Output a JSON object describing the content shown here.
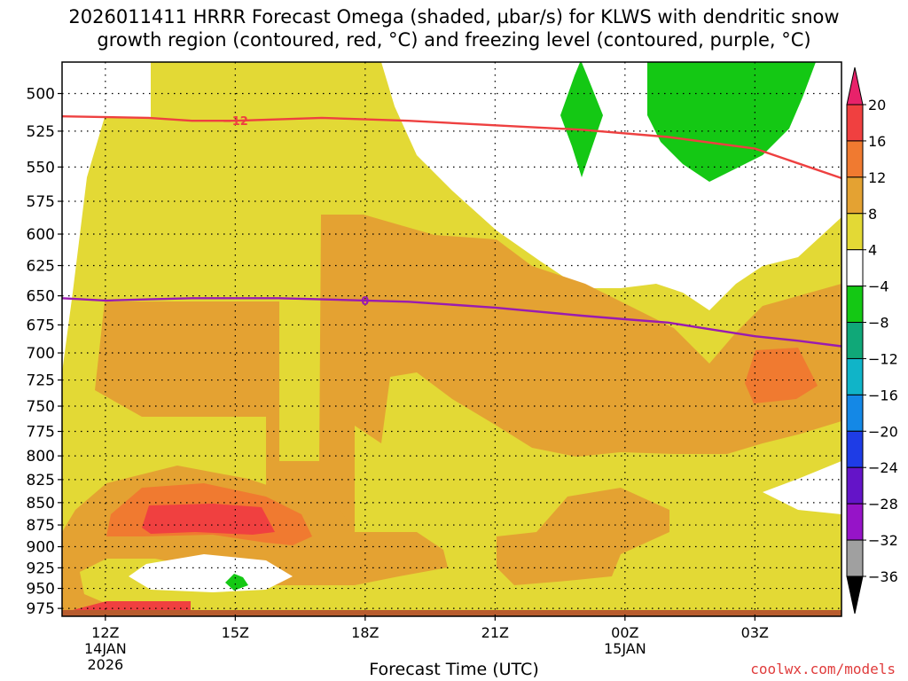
{
  "title": {
    "line1": "2026011411 HRRR Forecast Omega (shaded, µbar/s) for KLWS with dendritic snow",
    "line2": "growth region (contoured, red, °C) and freezing level (contoured, purple, °C)"
  },
  "watermark": "coolwx.com/models",
  "chart_data": {
    "type": "heatmap",
    "title": "2026011411 HRRR Forecast Omega (shaded, µbar/s) for KLWS with dendritic snow growth region (contoured, red, °C) and freezing level (contoured, purple, °C)",
    "xlabel": "Forecast Time (UTC)",
    "ylabel": "",
    "x_ticks": [
      {
        "hour": 1,
        "label": "12Z",
        "sub1": "14JAN",
        "sub2": "2026"
      },
      {
        "hour": 4,
        "label": "15Z",
        "sub1": "",
        "sub2": ""
      },
      {
        "hour": 7,
        "label": "18Z",
        "sub1": "",
        "sub2": ""
      },
      {
        "hour": 10,
        "label": "21Z",
        "sub1": "",
        "sub2": ""
      },
      {
        "hour": 13,
        "label": "00Z",
        "sub1": "15JAN",
        "sub2": ""
      },
      {
        "hour": 16,
        "label": "03Z",
        "sub1": "",
        "sub2": ""
      }
    ],
    "xlim_hours": [
      0,
      18
    ],
    "y_ticks": [
      500,
      525,
      550,
      575,
      600,
      625,
      650,
      675,
      700,
      725,
      750,
      775,
      800,
      825,
      850,
      875,
      900,
      925,
      950,
      975
    ],
    "ylim": [
      480,
      985
    ],
    "y_axis": "log-pressure (hPa), inverted",
    "grid": true,
    "colorbar": {
      "labels": [
        "20",
        "16",
        "12",
        "8",
        "4",
        "−4",
        "−8",
        "−12",
        "−16",
        "−20",
        "−24",
        "−28",
        "−32",
        "−36"
      ],
      "colors": [
        "#e8226a",
        "#f04040",
        "#f07a30",
        "#e4a232",
        "#e3d935",
        "#ffffff",
        "#14c814",
        "#10a878",
        "#10b4c8",
        "#1488e6",
        "#1e3ce6",
        "#6414c8",
        "#9614c8",
        "#a0a0a0",
        "#000000"
      ]
    },
    "fill_levels": {
      "omega_4_8": "#e3d935",
      "omega_8_12": "#e4a232",
      "omega_12_16": "#f07a30",
      "omega_16_20": "#f04040",
      "omega_-8_-4": "#14c814"
    },
    "contours": [
      {
        "name": "dendritic snow growth region",
        "color": "#ee4040",
        "label": "−12",
        "label_hour": 4,
        "points": [
          [
            0,
            515
          ],
          [
            2,
            516
          ],
          [
            3,
            518
          ],
          [
            4,
            518
          ],
          [
            5,
            517
          ],
          [
            6,
            516
          ],
          [
            7,
            517
          ],
          [
            8,
            518
          ],
          [
            10,
            521
          ],
          [
            12,
            524
          ],
          [
            14,
            529
          ],
          [
            16,
            537
          ],
          [
            18,
            558
          ]
        ]
      },
      {
        "name": "freezing level",
        "color": "#9a1bb0",
        "label": "0",
        "label_hour": 7,
        "points": [
          [
            0,
            652
          ],
          [
            1,
            654
          ],
          [
            2,
            653
          ],
          [
            3,
            652
          ],
          [
            4,
            652
          ],
          [
            5,
            652
          ],
          [
            6,
            653
          ],
          [
            7,
            654
          ],
          [
            8,
            655
          ],
          [
            10,
            660
          ],
          [
            12,
            667
          ],
          [
            13,
            670
          ],
          [
            14,
            673
          ],
          [
            15,
            679
          ],
          [
            16,
            685
          ],
          [
            17,
            689
          ],
          [
            18,
            694
          ]
        ]
      }
    ]
  }
}
